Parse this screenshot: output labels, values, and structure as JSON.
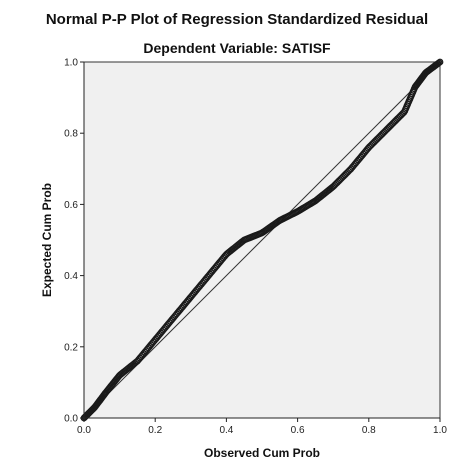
{
  "chart_data": {
    "type": "scatter",
    "title": "Normal P-P Plot of Regression Standardized Residual",
    "subtitle": "Dependent Variable: SATISF",
    "xlabel": "Observed Cum Prob",
    "ylabel": "Expected Cum Prob",
    "xlim": [
      0,
      1
    ],
    "ylim": [
      0,
      1
    ],
    "xticks": [
      "0.0",
      "0.2",
      "0.4",
      "0.6",
      "0.8",
      "1.0"
    ],
    "yticks": [
      "0.0",
      "0.2",
      "0.4",
      "0.6",
      "0.8",
      "1.0"
    ],
    "reference_line": [
      [
        0,
        0
      ],
      [
        1,
        1
      ]
    ],
    "grid": false,
    "plot_background": "#f0f0f0",
    "marker": "open-circle",
    "marker_color": "#1a1a1a",
    "curve_points": [
      [
        0.0,
        0.0
      ],
      [
        0.03,
        0.03
      ],
      [
        0.06,
        0.07
      ],
      [
        0.1,
        0.12
      ],
      [
        0.15,
        0.16
      ],
      [
        0.2,
        0.22
      ],
      [
        0.25,
        0.28
      ],
      [
        0.3,
        0.34
      ],
      [
        0.35,
        0.4
      ],
      [
        0.4,
        0.46
      ],
      [
        0.45,
        0.5
      ],
      [
        0.5,
        0.52
      ],
      [
        0.55,
        0.555
      ],
      [
        0.6,
        0.58
      ],
      [
        0.65,
        0.61
      ],
      [
        0.7,
        0.65
      ],
      [
        0.75,
        0.7
      ],
      [
        0.8,
        0.76
      ],
      [
        0.85,
        0.81
      ],
      [
        0.9,
        0.86
      ],
      [
        0.93,
        0.93
      ],
      [
        0.96,
        0.97
      ],
      [
        1.0,
        1.0
      ]
    ]
  }
}
